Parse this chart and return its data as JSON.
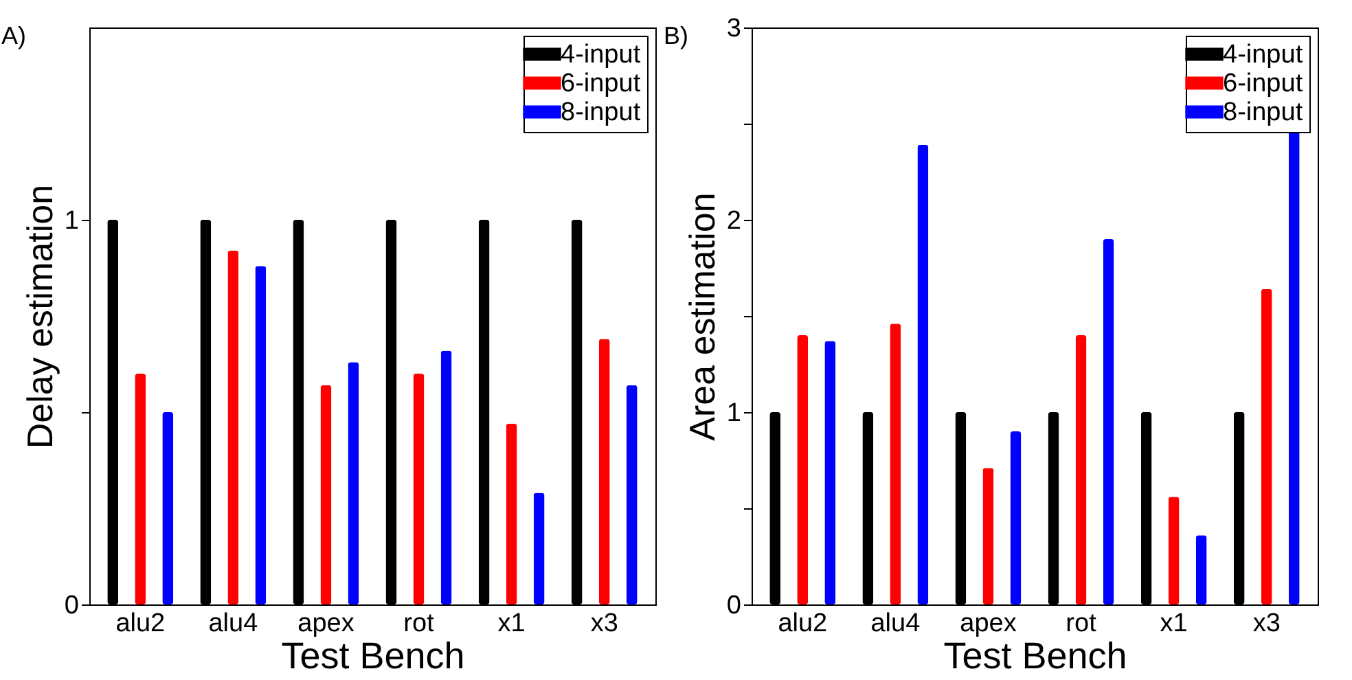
{
  "chart_data": [
    {
      "type": "bar",
      "annotations": [
        "A)"
      ],
      "xlabel": "Test Bench",
      "ylabel": "Delay estimation",
      "categories": [
        "alu2",
        "alu4",
        "apex",
        "rot",
        "x1",
        "x3"
      ],
      "series": [
        {
          "name": "4-input",
          "color": "#000000",
          "values": [
            1,
            1,
            1,
            1,
            1,
            1
          ]
        },
        {
          "name": "6-input",
          "color": "#ff0000",
          "values": [
            0.6,
            0.92,
            0.57,
            0.6,
            0.47,
            0.69
          ]
        },
        {
          "name": "8-input",
          "color": "#0000ff",
          "values": [
            0.5,
            0.88,
            0.63,
            0.66,
            0.29,
            0.57
          ]
        }
      ],
      "ylim": [
        0,
        1.5
      ],
      "yticks": [
        0,
        {
          "value": 0.5,
          "label": null
        },
        1
      ],
      "legend": "top right"
    },
    {
      "type": "bar",
      "annotations": [
        "B)"
      ],
      "xlabel": "Test Bench",
      "ylabel": "Area estimation",
      "categories": [
        "alu2",
        "alu4",
        "apex",
        "rot",
        "x1",
        "x3"
      ],
      "series": [
        {
          "name": "4-input",
          "color": "#000000",
          "values": [
            1,
            1,
            1,
            1,
            1,
            1
          ]
        },
        {
          "name": "6-input",
          "color": "#ff0000",
          "values": [
            1.4,
            1.46,
            0.71,
            1.4,
            0.56,
            1.64
          ]
        },
        {
          "name": "8-input",
          "color": "#0000ff",
          "values": [
            1.37,
            2.39,
            0.9,
            1.9,
            0.36,
            2.46
          ]
        }
      ],
      "ylim": [
        0,
        3
      ],
      "yticks": [
        0,
        {
          "value": 0.5,
          "label": null
        },
        1,
        {
          "value": 1.5,
          "label": null
        },
        2,
        {
          "value": 2.5,
          "label": null
        },
        3
      ],
      "legend": "top right"
    }
  ]
}
